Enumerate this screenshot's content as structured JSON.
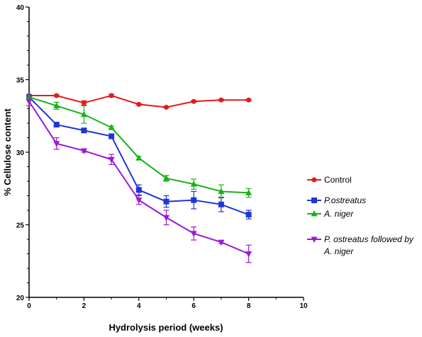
{
  "chart_data": {
    "type": "line",
    "title": "",
    "xlabel": "Hydrolysis period (weeks)",
    "ylabel": "% Cellulose content",
    "xlim": [
      0,
      10
    ],
    "ylim": [
      20,
      40
    ],
    "x_ticks": [
      0,
      2,
      4,
      6,
      8,
      10
    ],
    "y_ticks": [
      20,
      25,
      30,
      35,
      40
    ],
    "x_tick_labels": [
      "0",
      "2",
      "4",
      "6",
      "8",
      "10"
    ],
    "y_tick_labels": [
      "20",
      "25",
      "30",
      "35",
      "40"
    ],
    "grid": false,
    "legend_position": "right",
    "series": [
      {
        "name": "Control",
        "color": "#e41a1c",
        "marker": "circle",
        "x": [
          0,
          1,
          2,
          3,
          4,
          5,
          6,
          7,
          8
        ],
        "y": [
          33.9,
          33.9,
          33.4,
          33.9,
          33.3,
          33.1,
          33.5,
          33.6,
          33.6
        ],
        "err": [
          0.05,
          0.05,
          0.15,
          0.1,
          0.05,
          0.05,
          0.05,
          0.05,
          0.05
        ]
      },
      {
        "name": "P.ostreatus",
        "name_parts": [
          "P.ostreatus",
          ""
        ],
        "color": "#1f35d6",
        "marker": "square",
        "x": [
          0,
          1,
          2,
          3,
          4,
          5,
          6,
          7,
          8
        ],
        "y": [
          33.8,
          31.9,
          31.5,
          31.1,
          27.4,
          26.6,
          26.7,
          26.4,
          25.7
        ],
        "err": [
          0.05,
          0.15,
          0.15,
          0.15,
          0.35,
          0.4,
          0.6,
          0.5,
          0.3
        ]
      },
      {
        "name": "A. niger",
        "name_parts": [
          "A. niger",
          ""
        ],
        "color": "#19b219",
        "marker": "triangle-up",
        "x": [
          0,
          1,
          2,
          3,
          4,
          5,
          6,
          7,
          8
        ],
        "y": [
          33.8,
          33.2,
          32.6,
          31.7,
          29.6,
          28.2,
          27.8,
          27.3,
          27.2
        ],
        "err": [
          0.05,
          0.25,
          0.6,
          0.1,
          0.1,
          0.2,
          0.35,
          0.45,
          0.3
        ]
      },
      {
        "name": "P. ostreatus followed by A. niger",
        "name_parts": [
          "P. ostreatus followed by",
          "A. niger"
        ],
        "color": "#9b19d6",
        "marker": "triangle-down",
        "x": [
          0,
          1,
          2,
          3,
          4,
          5,
          6,
          7,
          8
        ],
        "y": [
          33.5,
          30.6,
          30.1,
          29.5,
          26.7,
          25.5,
          24.4,
          23.8,
          23.0
        ],
        "err": [
          0.3,
          0.4,
          0.1,
          0.35,
          0.3,
          0.5,
          0.45,
          0.1,
          0.6
        ]
      }
    ]
  }
}
